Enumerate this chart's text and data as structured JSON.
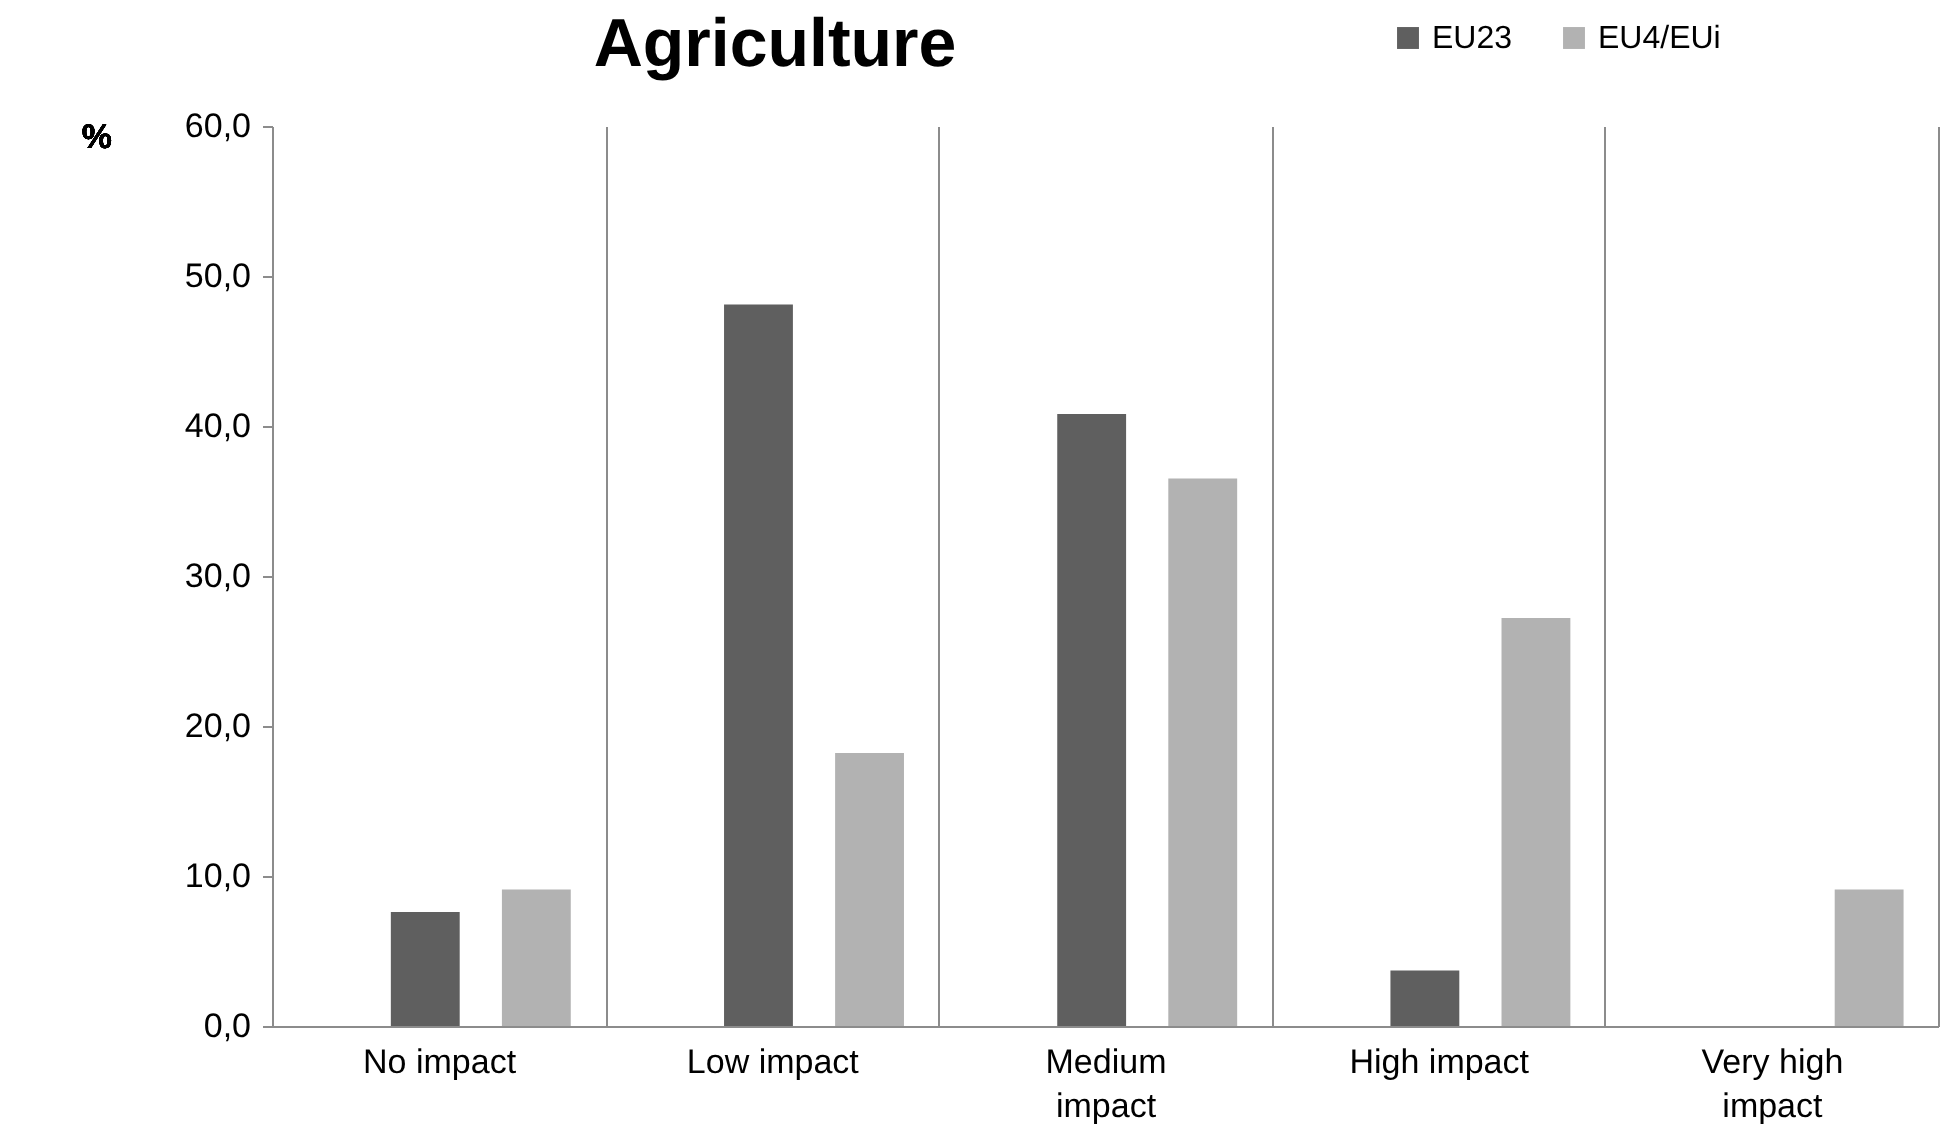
{
  "chart_data": {
    "type": "bar",
    "title": "Agriculture",
    "ylabel": "%",
    "categories": [
      "No impact",
      "Low impact",
      "Medium impact",
      "High impact",
      "Very high impact"
    ],
    "series": [
      {
        "name": "EU23",
        "color": "#5f5f5f",
        "values": [
          7.6,
          48.1,
          40.8,
          3.7,
          0
        ]
      },
      {
        "name": "EU4/EUi",
        "color": "#b2b2b2",
        "values": [
          9.1,
          18.2,
          36.5,
          27.2,
          9.1
        ]
      }
    ],
    "ylim": [
      0,
      60
    ],
    "yticks": [
      {
        "value": 0,
        "label": "0,0"
      },
      {
        "value": 10,
        "label": "10,0"
      },
      {
        "value": 20,
        "label": "20,0"
      },
      {
        "value": 30,
        "label": "30,0"
      },
      {
        "value": 40,
        "label": "40,0"
      },
      {
        "value": 50,
        "label": "50,0"
      },
      {
        "value": 60,
        "label": "60,0"
      }
    ],
    "grid": "x",
    "legend": "top right"
  }
}
